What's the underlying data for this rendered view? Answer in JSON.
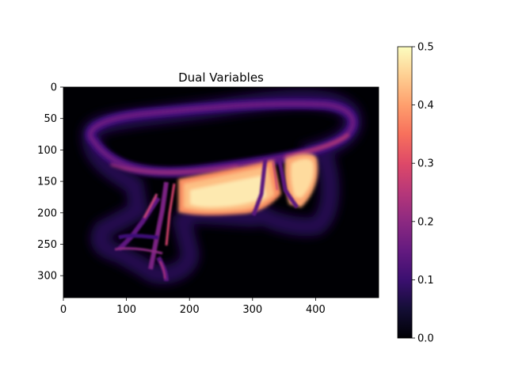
{
  "chart_data": {
    "type": "heatmap",
    "title": "Dual Variables",
    "xlabel": "",
    "ylabel": "",
    "colormap": "magma",
    "image_width": 500,
    "image_height": 335,
    "xlim": [
      0,
      500
    ],
    "ylim": [
      335,
      0
    ],
    "x_ticks": [
      0,
      100,
      200,
      300,
      400
    ],
    "y_ticks": [
      0,
      50,
      100,
      150,
      200,
      250,
      300
    ],
    "colorbar": {
      "min": 0.0,
      "max": 0.5,
      "ticks": [
        "0.0",
        "0.1",
        "0.2",
        "0.3",
        "0.4",
        "0.5"
      ]
    },
    "grid": false
  }
}
